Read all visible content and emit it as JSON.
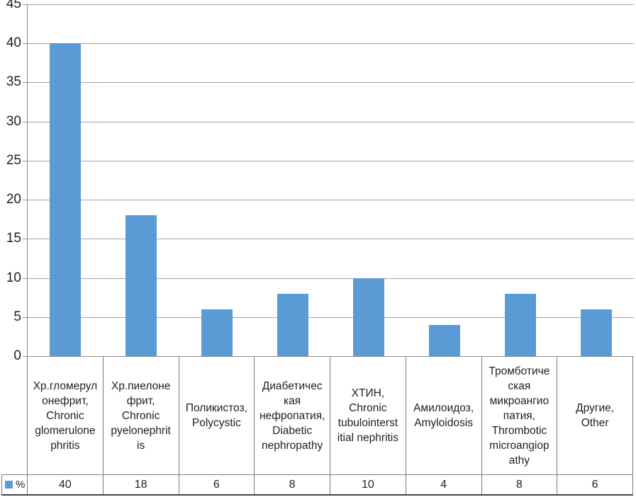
{
  "chart_data": {
    "type": "bar",
    "title": "",
    "categories": [
      "Хр.гломерул\nонефрит,\nChronic\nglomerulone\nphritis",
      "Хр.пиелоне\nфрит,\nChronic\npyelonephrit\nis",
      "Поликистоз,\nPolycystic",
      "Диабетичес\nкая\nнефропатия,\nDiabetic\nnephropathy",
      "ХТИН,\nChronic\ntubulointerst\nitial nephritis",
      "Амилоидоз,\nAmyloidosis",
      "Тромботиче\nская\nмикроангио\nпатия,\nThrombotic\nmicroangiop\nathy",
      "Другие,\nOther"
    ],
    "series": [
      {
        "name": "%",
        "values": [
          40,
          18,
          6,
          8,
          10,
          4,
          8,
          6
        ]
      }
    ],
    "ylim": [
      0,
      45
    ],
    "yticks": [
      0,
      5,
      10,
      15,
      20,
      25,
      30,
      35,
      40,
      45
    ],
    "xlabel": "",
    "ylabel": "",
    "grid": "horizontal",
    "legend_position": "bottom-table-left",
    "colors": {
      "bar": "#5b9bd5",
      "gridline": "#a3a3a3",
      "axis": "#8f8f8f",
      "cell_border": "#7a7a7a",
      "outer_bottom_border": "#3f3f3f",
      "text": "#1f1f1f"
    }
  }
}
